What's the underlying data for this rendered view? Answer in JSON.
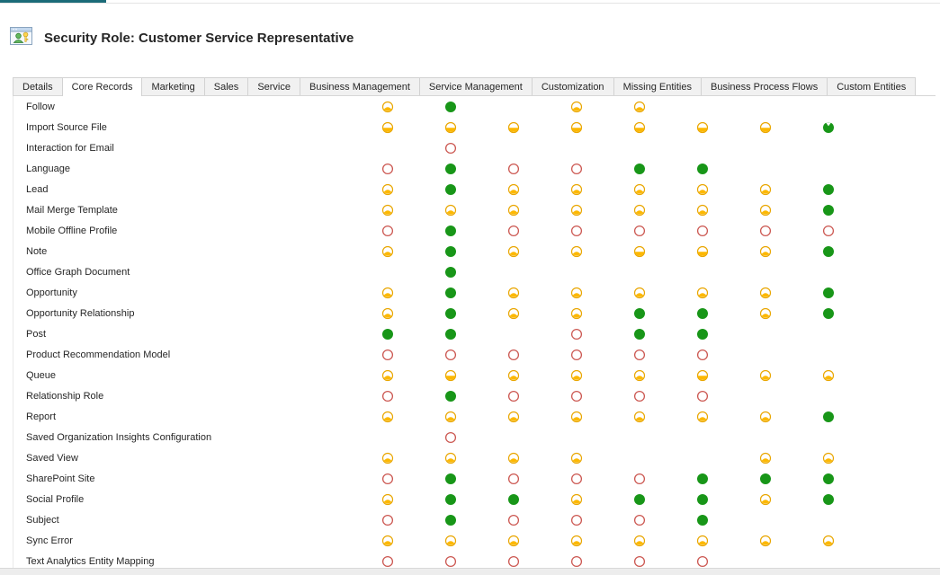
{
  "window": {
    "title": "Security Role: Customer Service Representative"
  },
  "palette": {
    "accent_teal": "#1b6b78",
    "organization_green": "#189618",
    "yellow_fill": "#fdb800",
    "yellow_stroke": "#e9a600",
    "none_red": "#cc5852",
    "text": "#262626"
  },
  "tabs": [
    {
      "label": "Details",
      "active": false
    },
    {
      "label": "Core Records",
      "active": true
    },
    {
      "label": "Marketing",
      "active": false
    },
    {
      "label": "Sales",
      "active": false
    },
    {
      "label": "Service",
      "active": false
    },
    {
      "label": "Business Management",
      "active": false
    },
    {
      "label": "Service Management",
      "active": false
    },
    {
      "label": "Customization",
      "active": false
    },
    {
      "label": "Missing Entities",
      "active": false
    },
    {
      "label": "Business Process Flows",
      "active": false
    },
    {
      "label": "Custom Entities",
      "active": false
    }
  ],
  "access_levels": {
    "none": "none-selected-circle-icon",
    "user": "user-access-circle-icon",
    "bu": "business-unit-access-circle-icon",
    "deep": "parent-child-access-circle-icon",
    "org": "organization-access-circle-icon"
  },
  "entities": [
    {
      "name": "Follow",
      "cells": [
        "user",
        "org",
        null,
        "user",
        "user",
        null,
        null,
        null
      ]
    },
    {
      "name": "Import Source File",
      "cells": [
        "bu",
        "bu",
        "bu",
        "bu",
        "bu",
        "bu",
        "bu",
        "deep"
      ]
    },
    {
      "name": "Interaction for Email",
      "cells": [
        null,
        "none",
        null,
        null,
        null,
        null,
        null,
        null
      ]
    },
    {
      "name": "Language",
      "cells": [
        "none",
        "org",
        "none",
        "none",
        "org",
        "org",
        null,
        null
      ]
    },
    {
      "name": "Lead",
      "cells": [
        "user",
        "org",
        "user",
        "user",
        "user",
        "user",
        "user",
        "org"
      ]
    },
    {
      "name": "Mail Merge Template",
      "cells": [
        "user",
        "user",
        "user",
        "user",
        "user",
        "user",
        "user",
        "org"
      ]
    },
    {
      "name": "Mobile Offline Profile",
      "cells": [
        "none",
        "org",
        "none",
        "none",
        "none",
        "none",
        "none",
        "none"
      ]
    },
    {
      "name": "Note",
      "cells": [
        "user",
        "org",
        "user",
        "user",
        "bu",
        "bu",
        "user",
        "org"
      ]
    },
    {
      "name": "Office Graph Document",
      "cells": [
        null,
        "org",
        null,
        null,
        null,
        null,
        null,
        null
      ]
    },
    {
      "name": "Opportunity",
      "cells": [
        "user",
        "org",
        "user",
        "user",
        "user",
        "user",
        "user",
        "org"
      ]
    },
    {
      "name": "Opportunity Relationship",
      "cells": [
        "user",
        "org",
        "user",
        "user",
        "org",
        "org",
        "user",
        "org"
      ]
    },
    {
      "name": "Post",
      "cells": [
        "org",
        "org",
        null,
        "none",
        "org",
        "org",
        null,
        null
      ]
    },
    {
      "name": "Product Recommendation Model",
      "cells": [
        "none",
        "none",
        "none",
        "none",
        "none",
        "none",
        null,
        null
      ]
    },
    {
      "name": "Queue",
      "cells": [
        "user",
        "bu",
        "user",
        "user",
        "user",
        "bu",
        "user",
        "user"
      ]
    },
    {
      "name": "Relationship Role",
      "cells": [
        "none",
        "org",
        "none",
        "none",
        "none",
        "none",
        null,
        null
      ]
    },
    {
      "name": "Report",
      "cells": [
        "user",
        "user",
        "user",
        "user",
        "user",
        "user",
        "user",
        "org"
      ]
    },
    {
      "name": "Saved Organization Insights Configuration",
      "cells": [
        null,
        "none",
        null,
        null,
        null,
        null,
        null,
        null
      ]
    },
    {
      "name": "Saved View",
      "cells": [
        "user",
        "user",
        "user",
        "user",
        null,
        null,
        "user",
        "user"
      ]
    },
    {
      "name": "SharePoint Site",
      "cells": [
        "none",
        "org",
        "none",
        "none",
        "none",
        "org",
        "org",
        "org"
      ]
    },
    {
      "name": "Social Profile",
      "cells": [
        "user",
        "org",
        "org",
        "user",
        "org",
        "org",
        "user",
        "org"
      ]
    },
    {
      "name": "Subject",
      "cells": [
        "none",
        "org",
        "none",
        "none",
        "none",
        "org",
        null,
        null
      ]
    },
    {
      "name": "Sync Error",
      "cells": [
        "user",
        "user",
        "user",
        "user",
        "user",
        "user",
        "user",
        "user"
      ]
    },
    {
      "name": "Text Analytics Entity Mapping",
      "cells": [
        "none",
        "none",
        "none",
        "none",
        "none",
        "none",
        null,
        null
      ]
    }
  ]
}
